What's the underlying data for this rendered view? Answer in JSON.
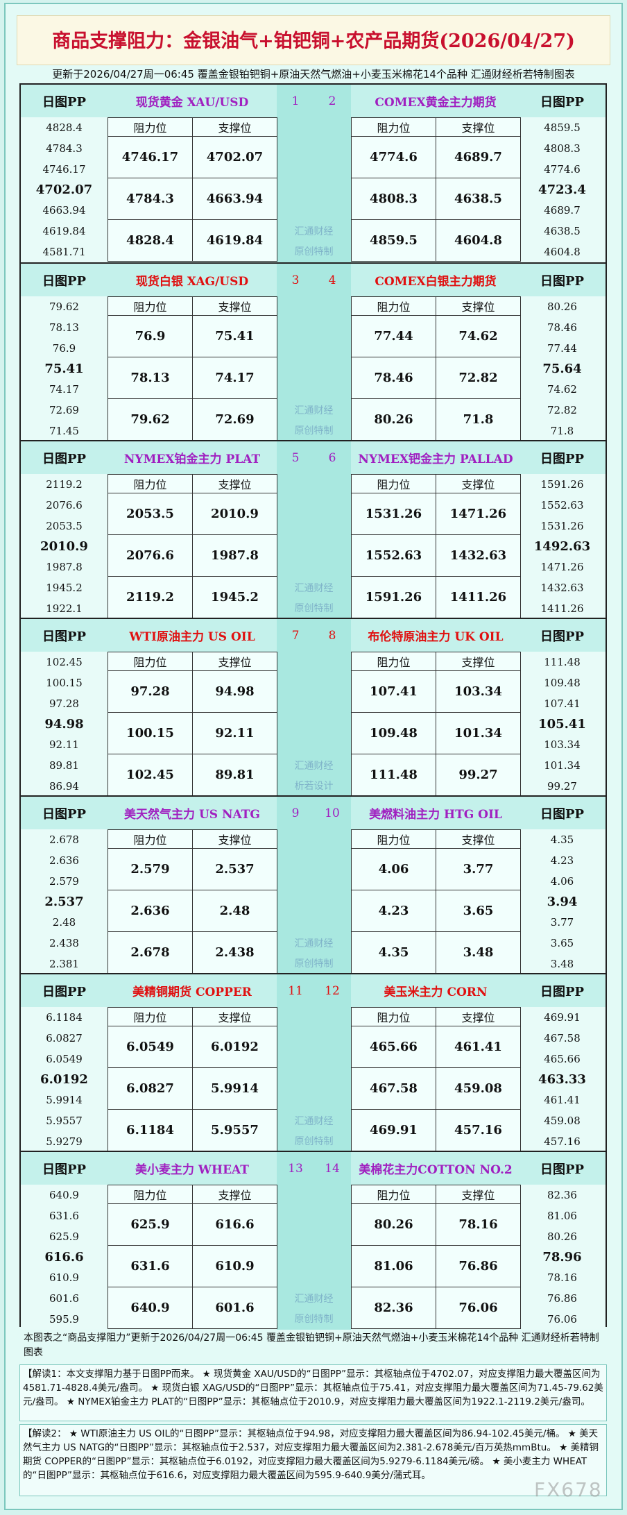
{
  "header": {
    "title": "商品支撑阻力：金银油气+铂钯铜+农产品期货(2026/04/27)",
    "subtitle": "更新于2026/04/27周一06:45 覆盖金银铂钯铜+原油天然气燃油+小麦玉米棉花14个品种 汇通财经析若特制图表"
  },
  "labels": {
    "pp": "日图PP",
    "resistance": "阻力位",
    "support": "支撑位"
  },
  "sections": [
    {
      "color": "#a020c0",
      "watermark": [
        "汇通财经",
        "原创特制"
      ],
      "left": {
        "name": "现货黄金 XAU/USD",
        "number": "1",
        "pp": [
          "4828.4",
          "4784.3",
          "4746.17",
          "4702.07",
          "4663.94",
          "4619.84",
          "4581.71"
        ],
        "rows": [
          [
            "4746.17",
            "4702.07"
          ],
          [
            "4784.3",
            "4663.94"
          ],
          [
            "4828.4",
            "4619.84"
          ]
        ]
      },
      "right": {
        "name": "COMEX黄金主力期货",
        "number": "2",
        "pp": [
          "4859.5",
          "4808.3",
          "4774.6",
          "4723.4",
          "4689.7",
          "4638.5",
          "4604.8"
        ],
        "rows": [
          [
            "4774.6",
            "4689.7"
          ],
          [
            "4808.3",
            "4638.5"
          ],
          [
            "4859.5",
            "4604.8"
          ]
        ]
      }
    },
    {
      "color": "#e01010",
      "watermark": [
        "汇通财经",
        "原创特制"
      ],
      "left": {
        "name": "现货白银 XAG/USD",
        "number": "3",
        "pp": [
          "79.62",
          "78.13",
          "76.9",
          "75.41",
          "74.17",
          "72.69",
          "71.45"
        ],
        "rows": [
          [
            "76.9",
            "75.41"
          ],
          [
            "78.13",
            "74.17"
          ],
          [
            "79.62",
            "72.69"
          ]
        ]
      },
      "right": {
        "name": "COMEX白银主力期货",
        "number": "4",
        "pp": [
          "80.26",
          "78.46",
          "77.44",
          "75.64",
          "74.62",
          "72.82",
          "71.8"
        ],
        "rows": [
          [
            "77.44",
            "74.62"
          ],
          [
            "78.46",
            "72.82"
          ],
          [
            "80.26",
            "71.8"
          ]
        ]
      }
    },
    {
      "color": "#a020c0",
      "watermark": [
        "汇通财经",
        "原创特制"
      ],
      "left": {
        "name": "NYMEX铂金主力 PLAT",
        "number": "5",
        "pp": [
          "2119.2",
          "2076.6",
          "2053.5",
          "2010.9",
          "1987.8",
          "1945.2",
          "1922.1"
        ],
        "rows": [
          [
            "2053.5",
            "2010.9"
          ],
          [
            "2076.6",
            "1987.8"
          ],
          [
            "2119.2",
            "1945.2"
          ]
        ]
      },
      "right": {
        "name": "NYMEX钯金主力 PALLAD",
        "number": "6",
        "pp": [
          "1591.26",
          "1552.63",
          "1531.26",
          "1492.63",
          "1471.26",
          "1432.63",
          "1411.26"
        ],
        "rows": [
          [
            "1531.26",
            "1471.26"
          ],
          [
            "1552.63",
            "1432.63"
          ],
          [
            "1591.26",
            "1411.26"
          ]
        ]
      }
    },
    {
      "color": "#e01010",
      "watermark": [
        "汇通财经",
        "析若设计"
      ],
      "left": {
        "name": "WTI原油主力 US OIL",
        "number": "7",
        "pp": [
          "102.45",
          "100.15",
          "97.28",
          "94.98",
          "92.11",
          "89.81",
          "86.94"
        ],
        "rows": [
          [
            "97.28",
            "94.98"
          ],
          [
            "100.15",
            "92.11"
          ],
          [
            "102.45",
            "89.81"
          ]
        ]
      },
      "right": {
        "name": "布伦特原油主力 UK OIL",
        "number": "8",
        "pp": [
          "111.48",
          "109.48",
          "107.41",
          "105.41",
          "103.34",
          "101.34",
          "99.27"
        ],
        "rows": [
          [
            "107.41",
            "103.34"
          ],
          [
            "109.48",
            "101.34"
          ],
          [
            "111.48",
            "99.27"
          ]
        ]
      }
    },
    {
      "color": "#a020c0",
      "watermark": [
        "汇通财经",
        "原创特制"
      ],
      "left": {
        "name": "美天然气主力 US NATG",
        "number": "9",
        "pp": [
          "2.678",
          "2.636",
          "2.579",
          "2.537",
          "2.48",
          "2.438",
          "2.381"
        ],
        "rows": [
          [
            "2.579",
            "2.537"
          ],
          [
            "2.636",
            "2.48"
          ],
          [
            "2.678",
            "2.438"
          ]
        ]
      },
      "right": {
        "name": "美燃料油主力 HTG OIL",
        "number": "10",
        "pp": [
          "4.35",
          "4.23",
          "4.06",
          "3.94",
          "3.77",
          "3.65",
          "3.48"
        ],
        "rows": [
          [
            "4.06",
            "3.77"
          ],
          [
            "4.23",
            "3.65"
          ],
          [
            "4.35",
            "3.48"
          ]
        ]
      }
    },
    {
      "color": "#e01010",
      "watermark": [
        "汇通财经",
        "原创特制"
      ],
      "left": {
        "name": "美精铜期货 COPPER",
        "number": "11",
        "pp": [
          "6.1184",
          "6.0827",
          "6.0549",
          "6.0192",
          "5.9914",
          "5.9557",
          "5.9279"
        ],
        "rows": [
          [
            "6.0549",
            "6.0192"
          ],
          [
            "6.0827",
            "5.9914"
          ],
          [
            "6.1184",
            "5.9557"
          ]
        ]
      },
      "right": {
        "name": "美玉米主力 CORN",
        "number": "12",
        "pp": [
          "469.91",
          "467.58",
          "465.66",
          "463.33",
          "461.41",
          "459.08",
          "457.16"
        ],
        "rows": [
          [
            "465.66",
            "461.41"
          ],
          [
            "467.58",
            "459.08"
          ],
          [
            "469.91",
            "457.16"
          ]
        ]
      }
    },
    {
      "color": "#a020c0",
      "watermark": [
        "汇通财经",
        "原创特制"
      ],
      "left": {
        "name": "美小麦主力 WHEAT",
        "number": "13",
        "pp": [
          "640.9",
          "631.6",
          "625.9",
          "616.6",
          "610.9",
          "601.6",
          "595.9"
        ],
        "rows": [
          [
            "625.9",
            "616.6"
          ],
          [
            "631.6",
            "610.9"
          ],
          [
            "640.9",
            "601.6"
          ]
        ]
      },
      "right": {
        "name": "美棉花主力COTTON NO.2",
        "number": "14",
        "pp": [
          "82.36",
          "81.06",
          "80.26",
          "78.96",
          "78.16",
          "76.86",
          "76.06"
        ],
        "rows": [
          [
            "80.26",
            "78.16"
          ],
          [
            "81.06",
            "76.86"
          ],
          [
            "82.36",
            "76.06"
          ]
        ]
      }
    }
  ],
  "footer": {
    "note": "本图表之“商品支撑阻力”更新于2026/04/27周一06:45 覆盖金银铂钯铜+原油天然气燃油+小麦玉米棉花14个品种 汇通财经析若特制图表",
    "explanation1": "【解读1：本文支撑阻力基于日图PP而来。 ★ 现货黄金 XAU/USD的“日图PP”显示：其枢轴点位于4702.07，对应支撑阻力最大覆盖区间为4581.71-4828.4美元/盎司。 ★ 现货白银 XAG/USD的“日图PP”显示：其枢轴点位于75.41，对应支撑阻力最大覆盖区间为71.45-79.62美元/盎司。 ★ NYMEX铂金主力 PLAT的“日图PP”显示：其枢轴点位于2010.9，对应支撑阻力最大覆盖区间为1922.1-2119.2美元/盎司。",
    "explanation2": "【解读2： ★ WTI原油主力 US OIL的“日图PP”显示：其枢轴点位于94.98，对应支撑阻力最大覆盖区间为86.94-102.45美元/桶。 ★ 美天然气主力 US NATG的“日图PP”显示：其枢轴点位于2.537，对应支撑阻力最大覆盖区间为2.381-2.678美元/百万英热mmBtu。 ★ 美精铜期货 COPPER的“日图PP”显示：其枢轴点位于6.0192，对应支撑阻力最大覆盖区间为5.9279-6.1184美元/磅。 ★ 美小麦主力 WHEAT的“日图PP”显示：其枢轴点位于616.6，对应支撑阻力最大覆盖区间为595.9-640.9美分/蒲式耳。"
  },
  "watermark": "FX678"
}
